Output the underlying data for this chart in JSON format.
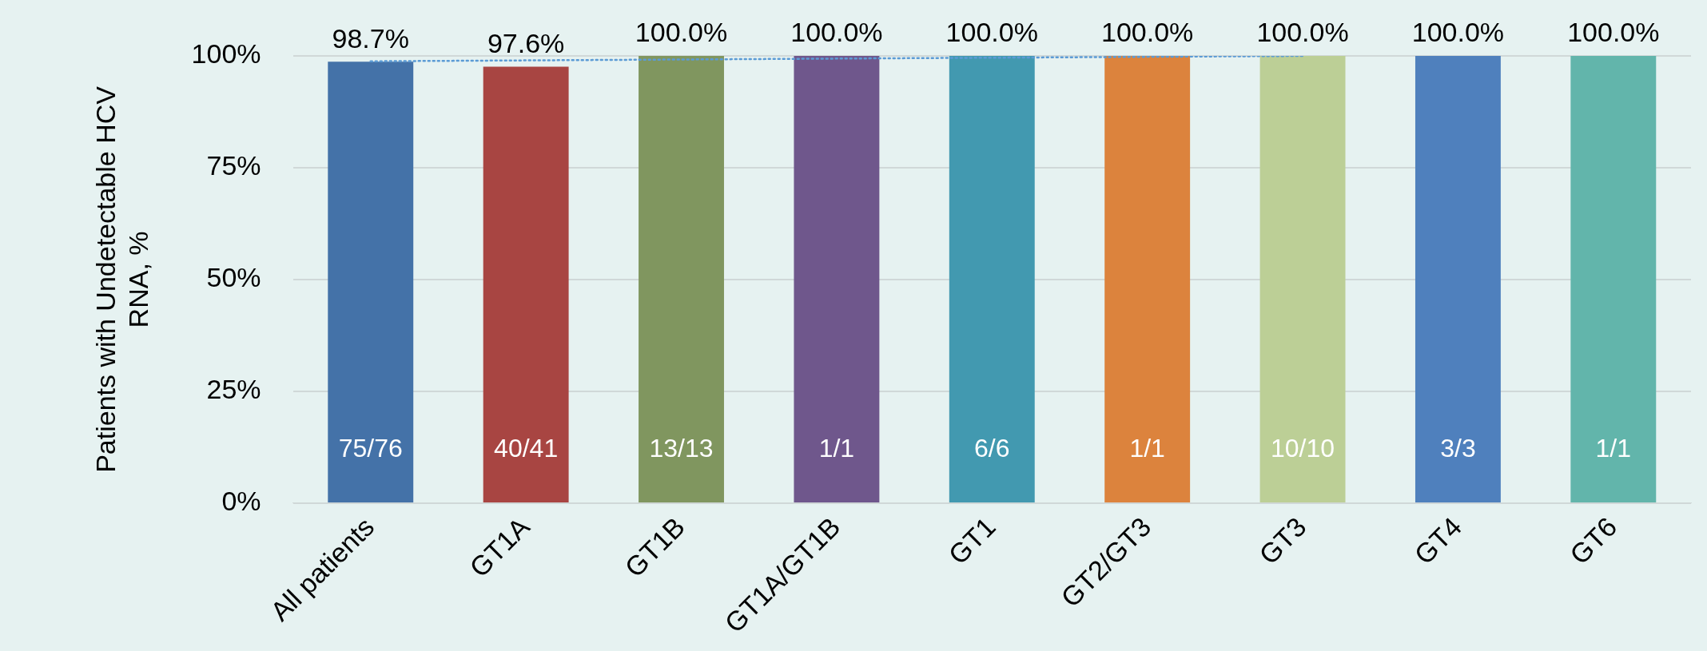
{
  "chart_data": {
    "type": "bar",
    "ylabel": "Patients with Undetectable HCV RNA, %",
    "categories": [
      "All patients",
      "GT1A",
      "GT1B",
      "GT1A/GT1B",
      "GT1",
      "GT2/GT3",
      "GT3",
      "GT4",
      "GT6"
    ],
    "series": [
      {
        "values": [
          98.7,
          97.6,
          100,
          100,
          100,
          100,
          100,
          100,
          100
        ],
        "colors": [
          "#4472a8",
          "#a84542",
          "#80965f",
          "#6f578c",
          "#4299b0",
          "#dc833d",
          "#bccf96",
          "#4f80bd",
          "#62b5ab"
        ],
        "value_labels": [
          "98.7%",
          "97.6%",
          "100.0%",
          "100.0%",
          "100.0%",
          "100.0%",
          "100.0%",
          "100.0%",
          "100.0%"
        ]
      },
      {
        "type": "line",
        "color": "#5b9bd5",
        "line_style": "dotted",
        "marker": "none",
        "values": [
          98.8,
          99.0,
          99.2,
          99.4,
          99.6,
          99.8,
          100,
          null,
          null
        ]
      }
    ],
    "ylim": [
      0,
      100
    ],
    "yticks": [
      {
        "value": 0,
        "label": "0%"
      },
      {
        "value": 25,
        "label": "25%"
      },
      {
        "value": 50,
        "label": "50%"
      },
      {
        "value": 75,
        "label": "75%"
      },
      {
        "value": 100,
        "label": "100%"
      }
    ],
    "grid": "y",
    "legend": false,
    "annotations": [
      "75/76",
      "40/41",
      "13/13",
      "1/1",
      "6/6",
      "1/1",
      "10/10",
      "3/3",
      "1/1"
    ]
  }
}
